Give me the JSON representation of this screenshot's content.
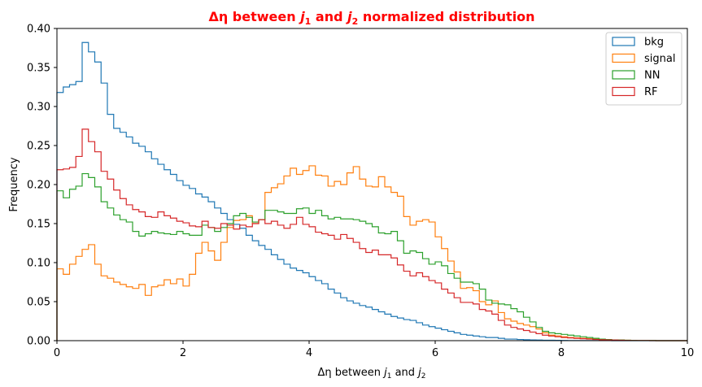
{
  "chart_data": {
    "type": "histogram-step",
    "title_prefix": "Δη between ",
    "title_j1": "j",
    "title_sub1": "1",
    "title_mid": " and ",
    "title_j2": "j",
    "title_sub2": "2",
    "title_suffix": " normalized distribution",
    "title_color": "#ff0000",
    "xlabel_prefix": "Δη  between ",
    "xlabel_j1": "j",
    "xlabel_sub1": "1",
    "xlabel_mid": " and ",
    "xlabel_j2": "j",
    "xlabel_sub2": "2",
    "ylabel": "Frequency",
    "xlim": [
      0,
      10
    ],
    "ylim": [
      0,
      0.4
    ],
    "xticks": [
      0,
      2,
      4,
      6,
      8,
      10
    ],
    "xtick_labels": [
      "0",
      "2",
      "4",
      "6",
      "8",
      "10"
    ],
    "yticks": [
      0,
      0.05,
      0.1,
      0.15,
      0.2,
      0.25,
      0.3,
      0.35,
      0.4
    ],
    "ytick_labels": [
      "0.00",
      "0.05",
      "0.10",
      "0.15",
      "0.20",
      "0.25",
      "0.30",
      "0.35",
      "0.40"
    ],
    "bins": {
      "start": 0,
      "end": 10,
      "count": 100
    },
    "legend_position": "upper-right",
    "series": [
      {
        "name": "bkg",
        "color": "#1f77b4",
        "values": [
          0.318,
          0.325,
          0.328,
          0.332,
          0.382,
          0.37,
          0.357,
          0.33,
          0.29,
          0.272,
          0.267,
          0.261,
          0.253,
          0.249,
          0.242,
          0.233,
          0.226,
          0.219,
          0.213,
          0.205,
          0.199,
          0.195,
          0.188,
          0.184,
          0.178,
          0.17,
          0.163,
          0.155,
          0.149,
          0.144,
          0.135,
          0.128,
          0.122,
          0.117,
          0.11,
          0.104,
          0.098,
          0.093,
          0.09,
          0.087,
          0.082,
          0.077,
          0.073,
          0.066,
          0.061,
          0.055,
          0.051,
          0.048,
          0.045,
          0.043,
          0.04,
          0.037,
          0.034,
          0.031,
          0.029,
          0.027,
          0.026,
          0.023,
          0.02,
          0.018,
          0.016,
          0.014,
          0.012,
          0.01,
          0.008,
          0.007,
          0.006,
          0.005,
          0.004,
          0.004,
          0.003,
          0.002,
          0.002,
          0.0015,
          0.0012,
          0.001,
          0.0008,
          0.0006,
          0.0005,
          0.0004,
          0.0003,
          0.0002,
          0.0002,
          0.0001,
          0.0001,
          0.0001,
          5e-05,
          5e-05,
          3e-05,
          2e-05,
          1e-05,
          1e-05,
          1e-05,
          0,
          0,
          0,
          0,
          0,
          0,
          0
        ]
      },
      {
        "name": "signal",
        "color": "#ff7f0e",
        "values": [
          0.092,
          0.085,
          0.098,
          0.108,
          0.117,
          0.123,
          0.098,
          0.083,
          0.08,
          0.075,
          0.072,
          0.069,
          0.067,
          0.072,
          0.058,
          0.069,
          0.071,
          0.078,
          0.073,
          0.079,
          0.07,
          0.085,
          0.112,
          0.126,
          0.115,
          0.103,
          0.126,
          0.145,
          0.154,
          0.155,
          0.16,
          0.15,
          0.155,
          0.19,
          0.196,
          0.201,
          0.211,
          0.221,
          0.213,
          0.218,
          0.224,
          0.212,
          0.211,
          0.198,
          0.204,
          0.2,
          0.215,
          0.223,
          0.207,
          0.198,
          0.197,
          0.21,
          0.197,
          0.19,
          0.185,
          0.159,
          0.148,
          0.153,
          0.155,
          0.152,
          0.133,
          0.118,
          0.102,
          0.088,
          0.067,
          0.068,
          0.064,
          0.05,
          0.046,
          0.051,
          0.036,
          0.028,
          0.025,
          0.022,
          0.02,
          0.018,
          0.015,
          0.01,
          0.007,
          0.006,
          0.005,
          0.004,
          0.0035,
          0.003,
          0.0025,
          0.002,
          0.0015,
          0.0012,
          0.001,
          0.0008,
          0.0005,
          0.0003,
          0.0002,
          0.0001,
          0.0001,
          0,
          0,
          0,
          0,
          0
        ]
      },
      {
        "name": "NN",
        "color": "#2ca02c",
        "values": [
          0.192,
          0.183,
          0.194,
          0.198,
          0.214,
          0.209,
          0.197,
          0.178,
          0.17,
          0.161,
          0.155,
          0.152,
          0.14,
          0.134,
          0.137,
          0.14,
          0.138,
          0.137,
          0.136,
          0.14,
          0.137,
          0.135,
          0.135,
          0.148,
          0.145,
          0.14,
          0.145,
          0.15,
          0.16,
          0.163,
          0.158,
          0.152,
          0.155,
          0.167,
          0.167,
          0.165,
          0.163,
          0.163,
          0.169,
          0.17,
          0.163,
          0.167,
          0.16,
          0.156,
          0.158,
          0.156,
          0.156,
          0.155,
          0.153,
          0.15,
          0.146,
          0.138,
          0.137,
          0.14,
          0.128,
          0.112,
          0.115,
          0.113,
          0.105,
          0.098,
          0.101,
          0.096,
          0.086,
          0.08,
          0.075,
          0.075,
          0.073,
          0.066,
          0.052,
          0.048,
          0.047,
          0.046,
          0.041,
          0.037,
          0.03,
          0.024,
          0.017,
          0.012,
          0.01,
          0.009,
          0.008,
          0.007,
          0.006,
          0.005,
          0.004,
          0.003,
          0.002,
          0.0015,
          0.001,
          0.0008,
          0.0005,
          0.0003,
          0.0002,
          0.0001,
          0.0001,
          0,
          0,
          0,
          0,
          0
        ]
      },
      {
        "name": "RF",
        "color": "#d62728",
        "values": [
          0.219,
          0.22,
          0.222,
          0.236,
          0.271,
          0.255,
          0.242,
          0.217,
          0.207,
          0.193,
          0.182,
          0.174,
          0.168,
          0.165,
          0.159,
          0.158,
          0.165,
          0.16,
          0.157,
          0.153,
          0.151,
          0.147,
          0.146,
          0.153,
          0.145,
          0.144,
          0.15,
          0.148,
          0.143,
          0.148,
          0.146,
          0.15,
          0.155,
          0.15,
          0.153,
          0.148,
          0.144,
          0.149,
          0.158,
          0.149,
          0.146,
          0.139,
          0.137,
          0.135,
          0.13,
          0.136,
          0.131,
          0.126,
          0.118,
          0.113,
          0.116,
          0.11,
          0.11,
          0.106,
          0.097,
          0.089,
          0.083,
          0.087,
          0.082,
          0.077,
          0.074,
          0.066,
          0.061,
          0.055,
          0.049,
          0.049,
          0.047,
          0.04,
          0.038,
          0.034,
          0.026,
          0.02,
          0.017,
          0.015,
          0.013,
          0.011,
          0.009,
          0.007,
          0.006,
          0.005,
          0.004,
          0.0035,
          0.003,
          0.0025,
          0.002,
          0.0015,
          0.0012,
          0.001,
          0.0008,
          0.0005,
          0.0003,
          0.0002,
          0.0001,
          0.0001,
          0,
          0,
          0,
          0,
          0,
          0
        ]
      }
    ]
  }
}
